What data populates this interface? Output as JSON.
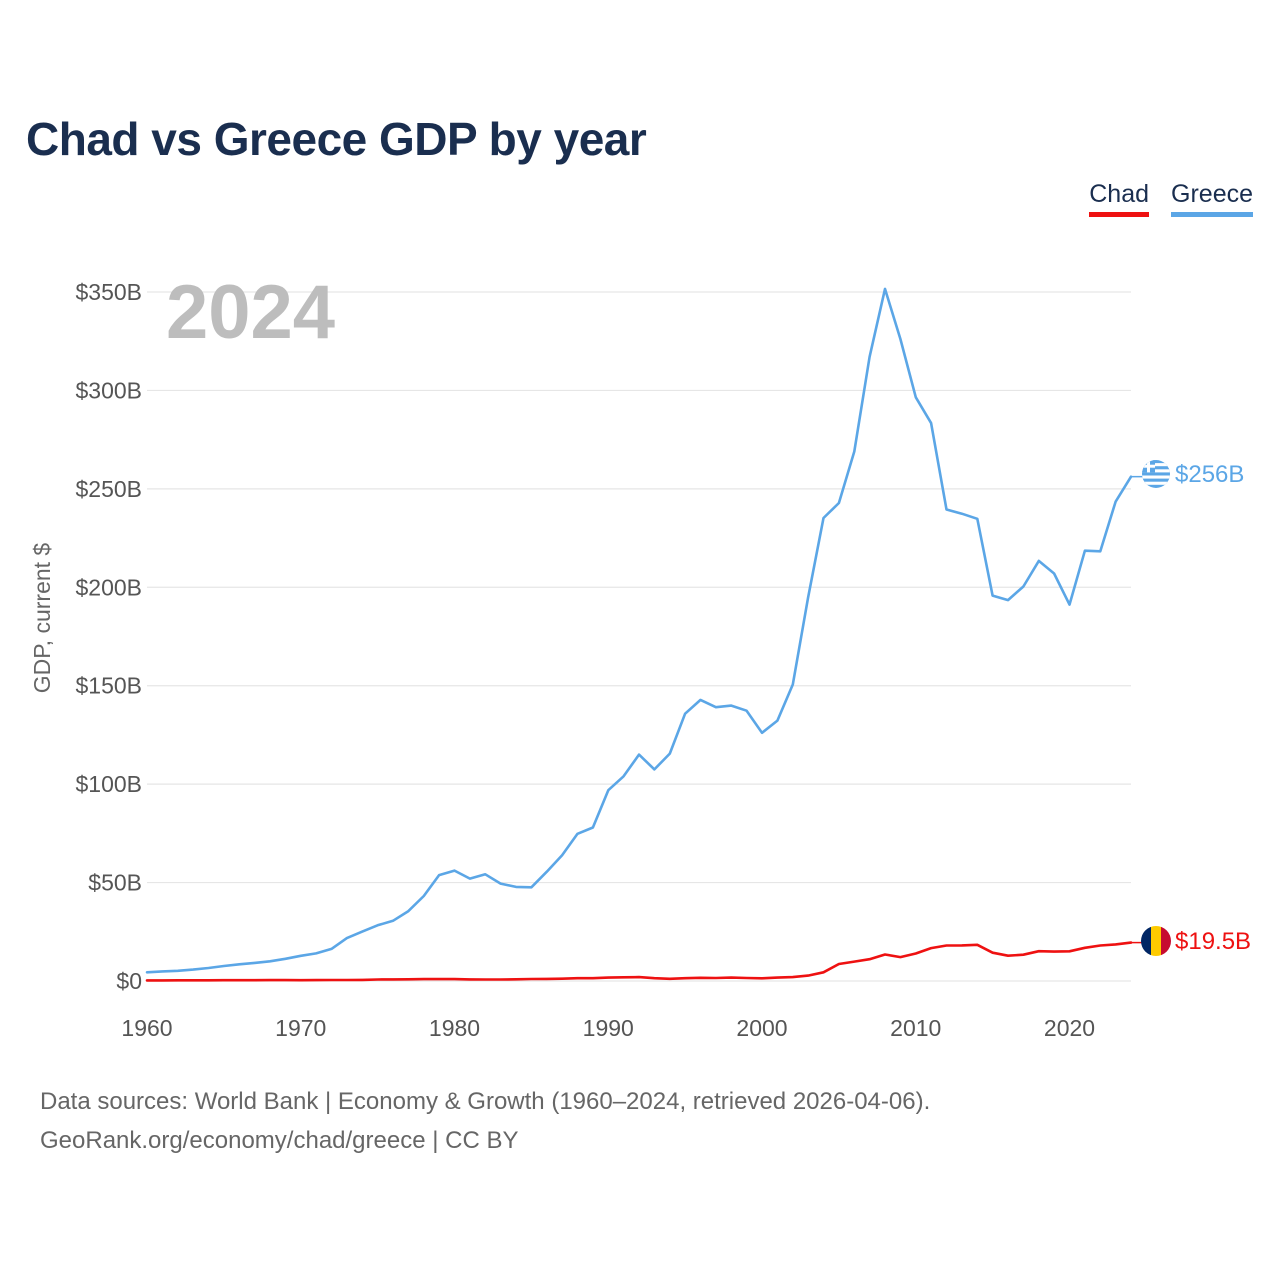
{
  "title": "Chad vs Greece GDP by year",
  "legend": {
    "chad": "Chad",
    "greece": "Greece"
  },
  "colors": {
    "chad": "#ee1111",
    "greece": "#5ba6e6",
    "grid": "#e6e6e6"
  },
  "source": {
    "line1": "Data sources: World Bank | Economy & Growth (1960–2024, retrieved 2026-04-06).",
    "line2": "GeoRank.org/economy/chad/greece | CC BY"
  },
  "chart_data": {
    "type": "line",
    "title": "Chad vs Greece GDP by year",
    "xlabel": "",
    "ylabel": "GDP, current $",
    "watermark": "2024",
    "xlim": [
      1960,
      2024
    ],
    "ylim": [
      0,
      350
    ],
    "x_ticks": [
      1960,
      1970,
      1980,
      1990,
      2000,
      2010,
      2020
    ],
    "y_ticks": [
      {
        "value": 0,
        "label": "$0"
      },
      {
        "value": 50,
        "label": "$50B"
      },
      {
        "value": 100,
        "label": "$100B"
      },
      {
        "value": 150,
        "label": "$150B"
      },
      {
        "value": 200,
        "label": "$200B"
      },
      {
        "value": 250,
        "label": "$250B"
      },
      {
        "value": 300,
        "label": "$300B"
      },
      {
        "value": 350,
        "label": "$350B"
      }
    ],
    "grid": true,
    "x": [
      1960,
      1961,
      1962,
      1963,
      1964,
      1965,
      1966,
      1967,
      1968,
      1969,
      1970,
      1971,
      1972,
      1973,
      1974,
      1975,
      1976,
      1977,
      1978,
      1979,
      1980,
      1981,
      1982,
      1983,
      1984,
      1985,
      1986,
      1987,
      1988,
      1989,
      1990,
      1991,
      1992,
      1993,
      1994,
      1995,
      1996,
      1997,
      1998,
      1999,
      2000,
      2001,
      2002,
      2003,
      2004,
      2005,
      2006,
      2007,
      2008,
      2009,
      2010,
      2011,
      2012,
      2013,
      2014,
      2015,
      2016,
      2017,
      2018,
      2019,
      2020,
      2021,
      2022,
      2023,
      2024
    ],
    "series": [
      {
        "name": "Greece",
        "key": "greece",
        "end_label": "$256B",
        "values": [
          4.4,
          4.9,
          5.2,
          5.8,
          6.6,
          7.6,
          8.5,
          9.2,
          10.0,
          11.3,
          12.8,
          14.0,
          16.3,
          21.8,
          25.1,
          28.3,
          30.6,
          35.5,
          43.2,
          53.8,
          56.1,
          52.0,
          54.2,
          49.5,
          47.8,
          47.6,
          55.5,
          63.9,
          74.8,
          78.0,
          96.9,
          104.0,
          115.0,
          107.5,
          115.5,
          135.8,
          142.8,
          139.1,
          139.9,
          137.3,
          126.1,
          132.3,
          150.6,
          194.8,
          235.2,
          242.8,
          269.0,
          317.1,
          351.6,
          326.1,
          296.5,
          283.4,
          239.5,
          237.4,
          234.8,
          195.8,
          193.5,
          200.4,
          213.4,
          207.0,
          191.2,
          218.6,
          218.3,
          243.5,
          256.2
        ]
      },
      {
        "name": "Chad",
        "key": "chad",
        "end_label": "$19.5B",
        "values": [
          0.31,
          0.33,
          0.35,
          0.36,
          0.38,
          0.4,
          0.41,
          0.41,
          0.44,
          0.47,
          0.42,
          0.45,
          0.51,
          0.53,
          0.57,
          0.78,
          0.81,
          0.87,
          0.96,
          0.99,
          0.99,
          0.82,
          0.78,
          0.77,
          0.84,
          1.0,
          1.06,
          1.16,
          1.43,
          1.43,
          1.74,
          1.88,
          1.99,
          1.44,
          1.1,
          1.44,
          1.61,
          1.5,
          1.72,
          1.53,
          1.39,
          1.71,
          1.99,
          2.74,
          4.42,
          8.64,
          9.86,
          11.05,
          13.45,
          12.15,
          13.95,
          16.7,
          18.03,
          18.07,
          18.4,
          14.37,
          12.86,
          13.37,
          15.15,
          14.93,
          15.07,
          16.87,
          18.03,
          18.6,
          19.51
        ]
      }
    ]
  }
}
